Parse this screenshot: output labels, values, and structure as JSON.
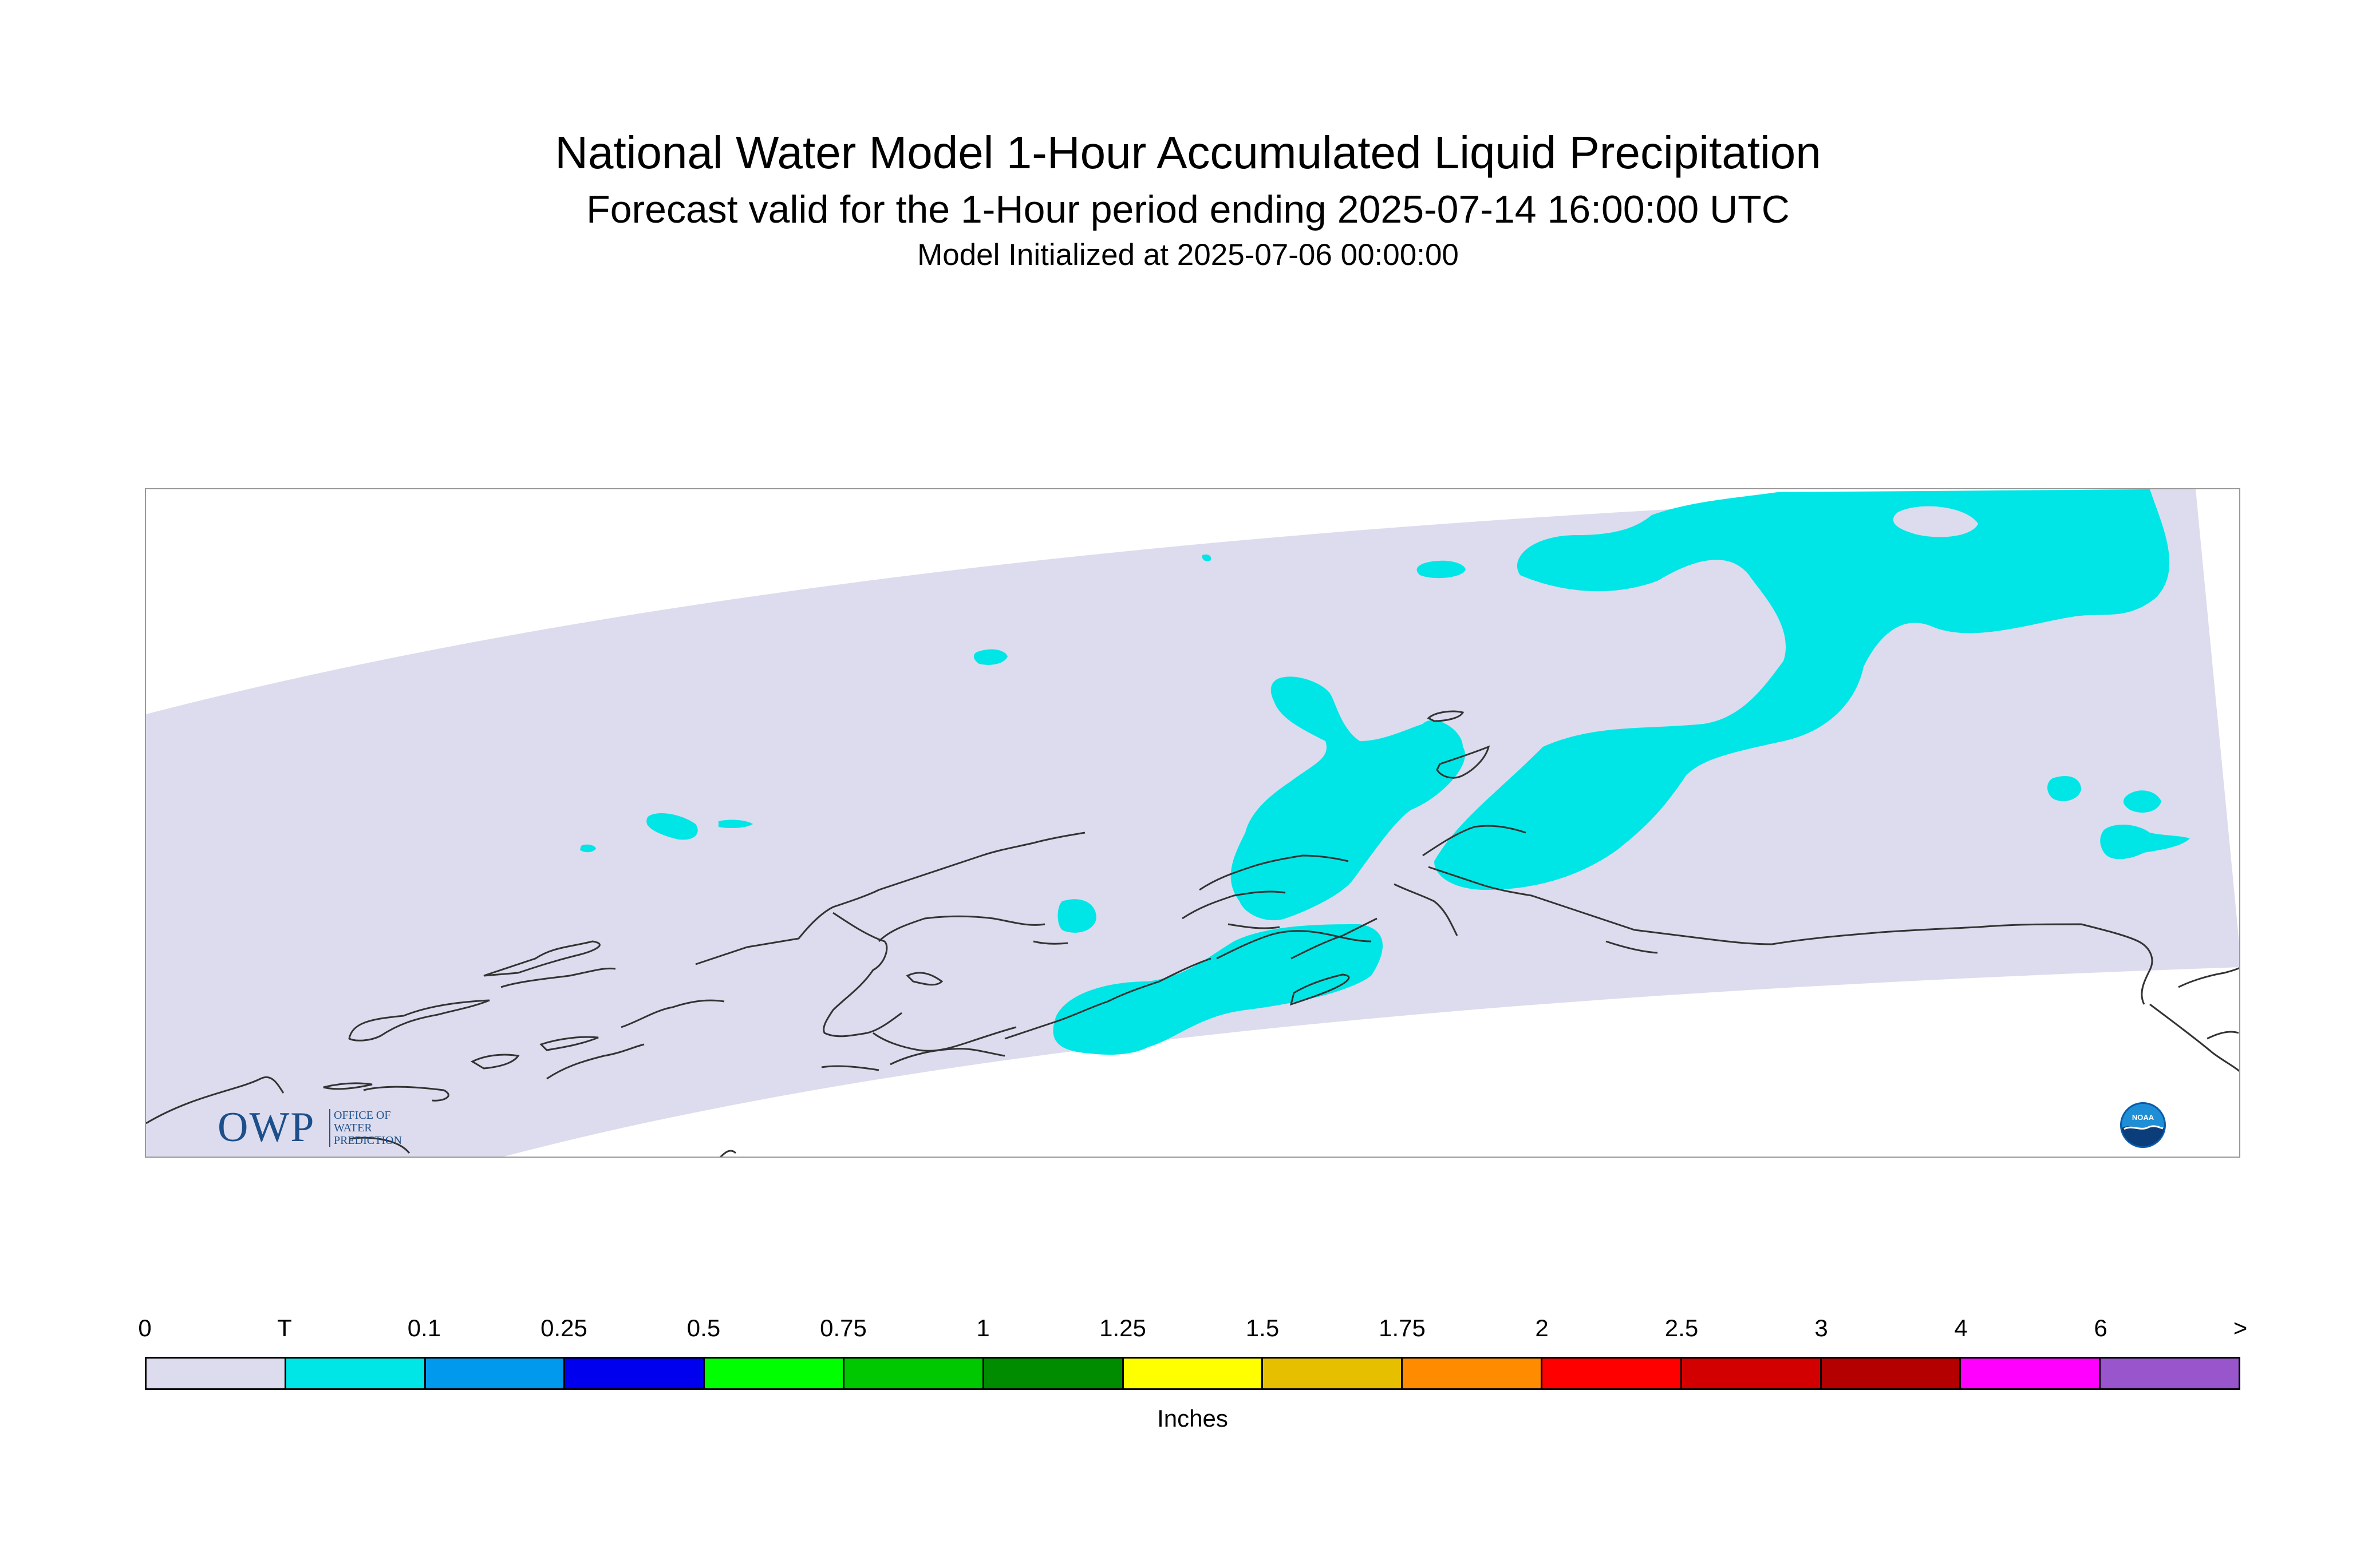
{
  "title": "National Water Model 1-Hour Accumulated Liquid Precipitation",
  "subtitle": "Forecast valid for the 1-Hour period ending 2025-07-14 16:00:00 UTC",
  "init_line": "Model Initialized at 2025-07-06 00:00:00",
  "logos": {
    "owp_letters": "OWP",
    "owp_text": "OFFICE OF\nWATER\nPREDICTION",
    "noaa_text": "NOAA"
  },
  "map": {
    "domain_fill_color": "#dcdcee",
    "precip_fill_color": "#00e6e6",
    "coastline_color": "#333333",
    "precipitation_category": "T"
  },
  "legend": {
    "units_label": "Inches",
    "tick_labels": [
      "0",
      "T",
      "0.1",
      "0.25",
      "0.5",
      "0.75",
      "1",
      "1.25",
      "1.5",
      "1.75",
      "2",
      "2.5",
      "3",
      "4",
      "6",
      ">"
    ],
    "colors": [
      "#dcdcee",
      "#00e6e6",
      "#0099ee",
      "#0000ee",
      "#00ff00",
      "#00c800",
      "#008c00",
      "#ffff00",
      "#e6c000",
      "#ff8c00",
      "#ff0000",
      "#d20000",
      "#b40000",
      "#ff00ff",
      "#9955cc"
    ]
  }
}
